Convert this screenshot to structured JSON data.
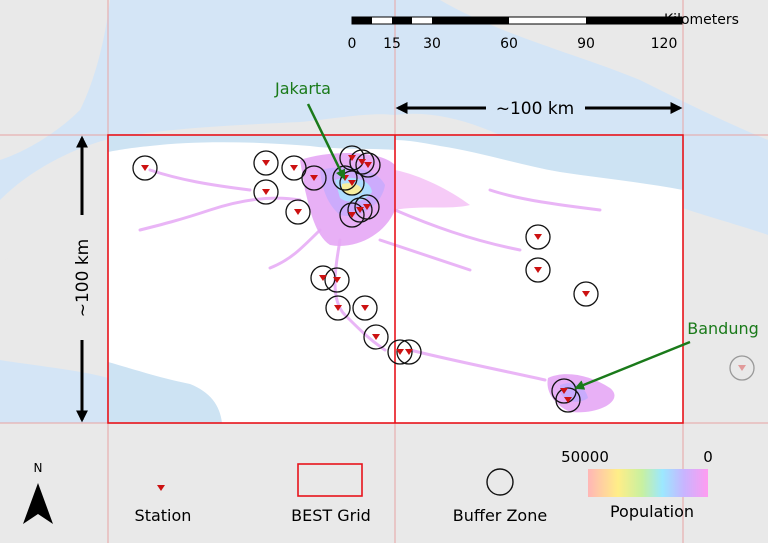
{
  "scale_bar": {
    "title": "Kilometers",
    "ticks": [
      "0",
      "15",
      "30",
      "60",
      "90",
      "120"
    ]
  },
  "dimension_labels": {
    "horizontal": "~100 km",
    "vertical": "~100 km"
  },
  "cities": [
    {
      "name": "Jakarta",
      "color": "#1a7a1a"
    },
    {
      "name": "Bandung",
      "color": "#1a7a1a"
    }
  ],
  "legend": {
    "north": "N",
    "station": "Station",
    "grid": "BEST Grid",
    "buffer": "Buffer Zone",
    "population_label": "Population",
    "population_max": "50000",
    "population_min": "0"
  },
  "colors": {
    "sea": "#d4e5f6",
    "land": "#e9e9e9",
    "grid_line": "#e7a7a7",
    "best_grid": "#e8141c",
    "station": "#cc1111",
    "arrow_green": "#1a7a1a",
    "study_sea": "#cde3f3"
  }
}
